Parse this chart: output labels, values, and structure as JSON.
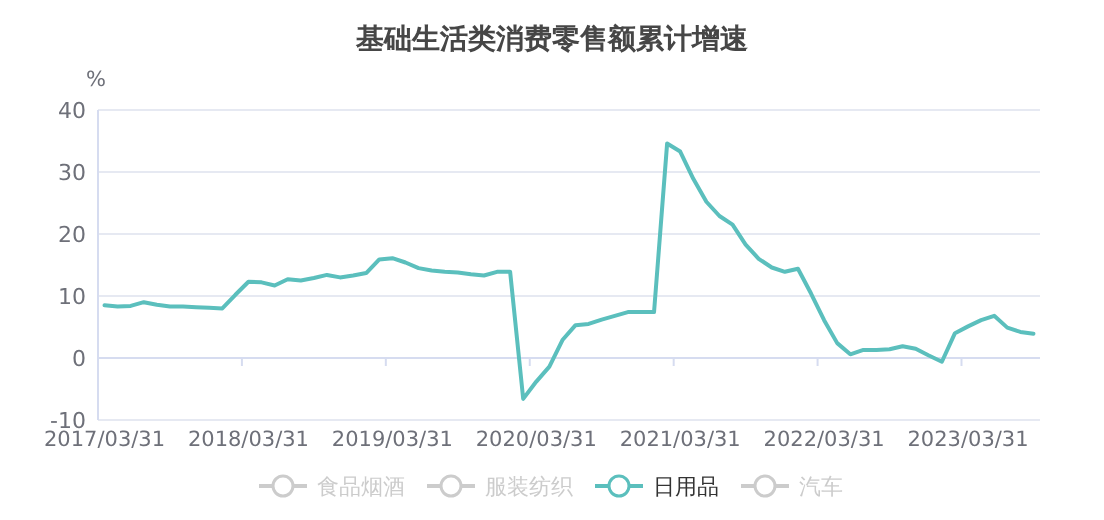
{
  "chart_data": {
    "type": "line",
    "title": "基础生活类消费零售额累计增速",
    "ylabel": "%",
    "categories": [
      "2017/03/31",
      null,
      null,
      null,
      null,
      null,
      null,
      null,
      null,
      null,
      null,
      "2018/03/31",
      null,
      null,
      null,
      null,
      null,
      null,
      null,
      null,
      null,
      null,
      "2019/03/31",
      null,
      null,
      null,
      null,
      null,
      null,
      null,
      null,
      null,
      null,
      "2020/03/31",
      null,
      null,
      null,
      null,
      null,
      null,
      null,
      null,
      null,
      null,
      "2021/03/31",
      null,
      null,
      null,
      null,
      null,
      null,
      null,
      null,
      null,
      null,
      "2022/03/31",
      null,
      null,
      null,
      null,
      null,
      null,
      null,
      null,
      null,
      null,
      "2023/03/31",
      null,
      null,
      null,
      null,
      null
    ],
    "series": [
      {
        "name": "食品烟酒",
        "color": "#cccccc",
        "values": [
          null,
          null,
          null,
          null,
          null,
          null,
          null,
          null,
          null,
          null,
          null,
          null,
          null,
          null,
          null,
          null,
          null,
          null,
          null,
          null,
          null,
          null,
          null,
          null,
          null,
          null,
          null,
          null,
          null,
          null,
          null,
          null,
          null,
          null,
          null,
          null,
          null,
          null,
          null,
          null,
          null,
          null,
          null,
          null,
          null,
          null,
          null,
          null,
          null,
          null,
          null,
          null,
          null,
          null,
          null,
          null,
          null,
          null,
          null,
          null,
          null,
          null,
          null,
          null,
          null,
          null,
          null,
          null,
          null,
          null,
          null,
          null
        ]
      },
      {
        "name": "服装纺织",
        "color": "#cccccc",
        "values": [
          null,
          null,
          null,
          null,
          null,
          null,
          null,
          null,
          null,
          null,
          null,
          null,
          null,
          null,
          null,
          null,
          null,
          null,
          null,
          null,
          null,
          null,
          null,
          null,
          null,
          null,
          null,
          null,
          null,
          null,
          null,
          null,
          null,
          null,
          null,
          null,
          null,
          null,
          null,
          null,
          null,
          null,
          null,
          null,
          null,
          null,
          null,
          null,
          null,
          null,
          null,
          null,
          null,
          null,
          null,
          null,
          null,
          null,
          null,
          null,
          null,
          null,
          null,
          null,
          null,
          null,
          null,
          null,
          null,
          null,
          null,
          null
        ]
      },
      {
        "name": "日用品",
        "color": "#5bbfbd",
        "values": [
          8.5,
          8.3,
          8.4,
          9.0,
          8.6,
          8.3,
          8.3,
          8.2,
          8.1,
          8.0,
          10.2,
          12.3,
          12.2,
          11.7,
          12.7,
          12.5,
          12.9,
          13.4,
          13.0,
          13.3,
          13.7,
          15.9,
          16.1,
          15.4,
          14.5,
          14.1,
          13.9,
          13.8,
          13.5,
          13.3,
          13.9,
          13.9,
          -6.6,
          -3.8,
          -1.4,
          2.9,
          5.3,
          5.5,
          6.2,
          6.8,
          7.4,
          7.4,
          7.4,
          34.6,
          33.3,
          28.9,
          25.2,
          22.9,
          21.5,
          18.3,
          16.0,
          14.6,
          13.9,
          14.4,
          10.4,
          6.1,
          2.4,
          0.6,
          1.3,
          1.3,
          1.4,
          1.9,
          1.5,
          0.4,
          -0.6,
          4.0,
          5.1,
          6.1,
          6.8,
          4.9,
          4.2,
          3.9
        ]
      },
      {
        "name": "汽车",
        "color": "#cccccc",
        "values": [
          null,
          null,
          null,
          null,
          null,
          null,
          null,
          null,
          null,
          null,
          null,
          null,
          null,
          null,
          null,
          null,
          null,
          null,
          null,
          null,
          null,
          null,
          null,
          null,
          null,
          null,
          null,
          null,
          null,
          null,
          null,
          null,
          null,
          null,
          null,
          null,
          null,
          null,
          null,
          null,
          null,
          null,
          null,
          null,
          null,
          null,
          null,
          null,
          null,
          null,
          null,
          null,
          null,
          null,
          null,
          null,
          null,
          null,
          null,
          null,
          null,
          null,
          null,
          null,
          null,
          null,
          null,
          null,
          null,
          null,
          null,
          null
        ]
      }
    ],
    "ylim": [
      -10,
      40
    ],
    "yticks": [
      -10,
      0,
      10,
      20,
      30,
      40
    ],
    "grid": "y",
    "legend": "bottom",
    "marker": "none",
    "line_style": "solid"
  }
}
